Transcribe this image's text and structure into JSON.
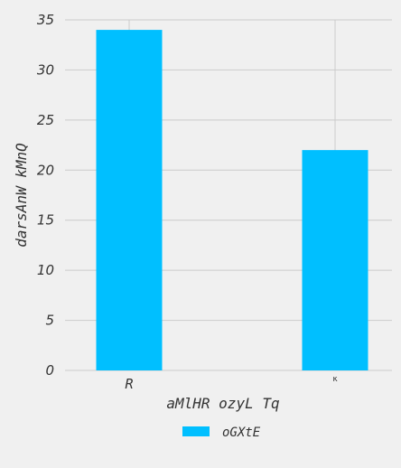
{
  "chart_data": {
    "type": "bar",
    "categories": [
      "R",
      "ĸ"
    ],
    "series": [
      {
        "name": "oGXtE",
        "values": [
          34,
          22
        ]
      }
    ],
    "xlabel": "aMlHR ozyL Tq",
    "ylabel": "darsAnW kMnQ",
    "ylim": [
      0,
      35
    ],
    "yticks": [
      0,
      5,
      10,
      15,
      20,
      25,
      30,
      35
    ],
    "grid": true,
    "legend_position": "bottom-center"
  },
  "colors": {
    "bar": "#00bfff",
    "background": "#f0f0f0",
    "grid": "#cbcbcb"
  }
}
